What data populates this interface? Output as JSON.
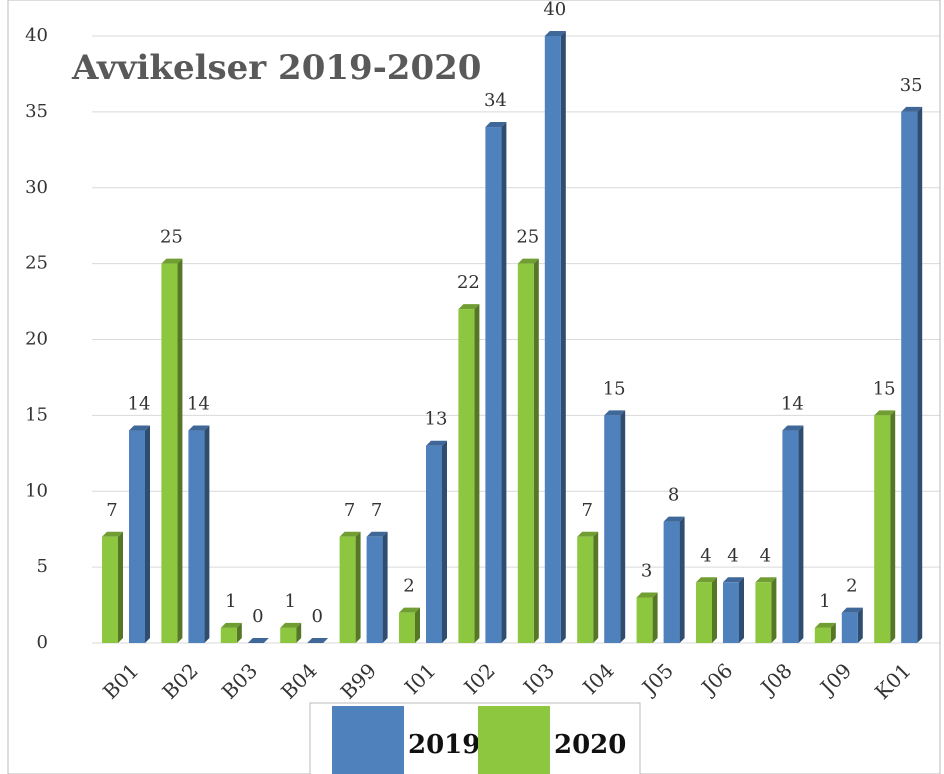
{
  "chart_data": {
    "type": "bar",
    "title": "Avvikelser 2019-2020",
    "categories": [
      "B01",
      "B02",
      "B03",
      "B04",
      "B99",
      "I01",
      "I02",
      "I03",
      "I04",
      "J05",
      "J06",
      "J08",
      "J09",
      "K01"
    ],
    "series": [
      {
        "name": "2019",
        "color": "#4f81bd",
        "values": [
          14,
          14,
          0,
          0,
          7,
          13,
          34,
          40,
          15,
          8,
          4,
          14,
          2,
          35
        ]
      },
      {
        "name": "2020",
        "color": "#8dc63f",
        "values": [
          7,
          25,
          1,
          1,
          7,
          2,
          22,
          25,
          7,
          3,
          4,
          4,
          1,
          15
        ]
      }
    ],
    "ylim": [
      0,
      40
    ],
    "yticks": [
      0,
      5,
      10,
      15,
      20,
      25,
      30,
      35,
      40
    ],
    "grid": true,
    "legend": "bottom"
  }
}
